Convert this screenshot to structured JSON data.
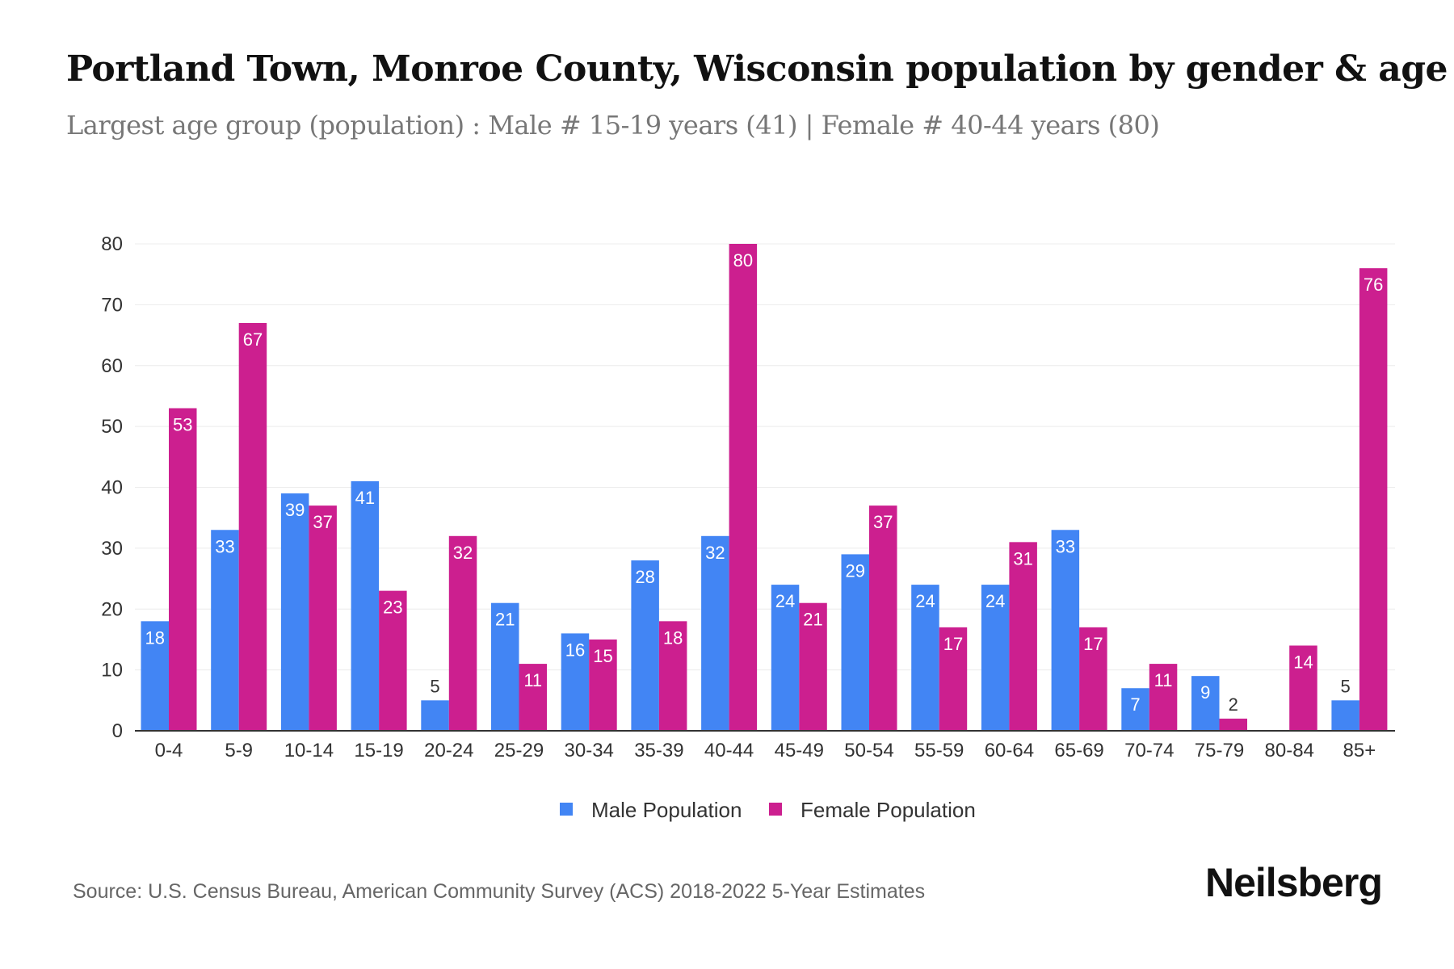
{
  "title": "Portland Town, Monroe County, Wisconsin population by gender & age",
  "subtitle": "Largest age group (population) : Male # 15-19 years (41) | Female # 40-44 years (80)",
  "source": "Source: U.S. Census Bureau, American Community Survey (ACS) 2018-2022 5-Year Estimates",
  "logo": "Neilsberg",
  "chart_data": {
    "type": "bar",
    "title": "Portland Town, Monroe County, Wisconsin population by gender & age",
    "xlabel": "",
    "ylabel": "",
    "ylim": [
      0,
      80
    ],
    "yticks": [
      0,
      10,
      20,
      30,
      40,
      50,
      60,
      70,
      80
    ],
    "grid": true,
    "legend_position": "bottom",
    "categories": [
      "0-4",
      "5-9",
      "10-14",
      "15-19",
      "20-24",
      "25-29",
      "30-34",
      "35-39",
      "40-44",
      "45-49",
      "50-54",
      "55-59",
      "60-64",
      "65-69",
      "70-74",
      "75-79",
      "80-84",
      "85+"
    ],
    "series": [
      {
        "name": "Male Population",
        "color": "#4285F4",
        "values": [
          18,
          33,
          39,
          41,
          5,
          21,
          16,
          28,
          32,
          24,
          29,
          24,
          24,
          33,
          7,
          9,
          null,
          5
        ]
      },
      {
        "name": "Female Population",
        "color": "#CC1F8F",
        "values": [
          53,
          67,
          37,
          23,
          32,
          11,
          15,
          18,
          80,
          21,
          37,
          17,
          31,
          17,
          11,
          2,
          14,
          76
        ]
      }
    ]
  }
}
